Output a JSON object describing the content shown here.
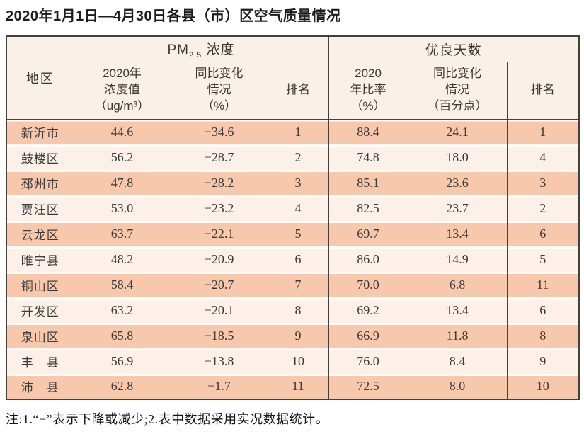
{
  "title": "2020年1月1日—4月30日各县（市）区空气质量情况",
  "table": {
    "region_header": "地区",
    "pm_group": {
      "prefix": "PM",
      "sub": "2.5",
      "suffix": " 浓度"
    },
    "good_days_group": "优良天数",
    "sub_headers": {
      "pm_value": "2020年\n浓度值\n（ug/m³）",
      "pm_change": "同比变化\n情况\n（%）",
      "pm_rank": "排名",
      "ratio": "2020\n年比率\n（%）",
      "ratio_change": "同比变化\n情况\n（百分点）",
      "ratio_rank": "排名"
    },
    "rows": [
      {
        "region": "新沂市",
        "pm_value": "44.6",
        "pm_change": "−34.6",
        "pm_rank": "1",
        "ratio": "88.4",
        "ratio_change": "24.1",
        "ratio_rank": "1"
      },
      {
        "region": "鼓楼区",
        "pm_value": "56.2",
        "pm_change": "−28.7",
        "pm_rank": "2",
        "ratio": "74.8",
        "ratio_change": "18.0",
        "ratio_rank": "4"
      },
      {
        "region": "邳州市",
        "pm_value": "47.8",
        "pm_change": "−28.2",
        "pm_rank": "3",
        "ratio": "85.1",
        "ratio_change": "23.6",
        "ratio_rank": "3"
      },
      {
        "region": "贾汪区",
        "pm_value": "53.0",
        "pm_change": "−23.2",
        "pm_rank": "4",
        "ratio": "82.5",
        "ratio_change": "23.7",
        "ratio_rank": "2"
      },
      {
        "region": "云龙区",
        "pm_value": "63.7",
        "pm_change": "−22.1",
        "pm_rank": "5",
        "ratio": "69.7",
        "ratio_change": "13.4",
        "ratio_rank": "6"
      },
      {
        "region": "睢宁县",
        "pm_value": "48.2",
        "pm_change": "−20.9",
        "pm_rank": "6",
        "ratio": "86.0",
        "ratio_change": "14.9",
        "ratio_rank": "5"
      },
      {
        "region": "铜山区",
        "pm_value": "58.4",
        "pm_change": "−20.7",
        "pm_rank": "7",
        "ratio": "70.0",
        "ratio_change": "6.8",
        "ratio_rank": "11"
      },
      {
        "region": "开发区",
        "pm_value": "63.2",
        "pm_change": "−20.1",
        "pm_rank": "8",
        "ratio": "69.2",
        "ratio_change": "13.4",
        "ratio_rank": "6"
      },
      {
        "region": "泉山区",
        "pm_value": "65.8",
        "pm_change": "−18.5",
        "pm_rank": "9",
        "ratio": "66.9",
        "ratio_change": "11.8",
        "ratio_rank": "8"
      },
      {
        "region": "丰　县",
        "pm_value": "56.9",
        "pm_change": "−13.8",
        "pm_rank": "10",
        "ratio": "76.0",
        "ratio_change": "8.4",
        "ratio_rank": "9"
      },
      {
        "region": "沛　县",
        "pm_value": "62.8",
        "pm_change": "−1.7",
        "pm_rank": "11",
        "ratio": "72.5",
        "ratio_change": "8.0",
        "ratio_rank": "10"
      }
    ]
  },
  "footnote": "注:1.“−”表示下降或减少;2.表中数据采用实况数据统计。",
  "colors": {
    "row_odd": "#f8c8ad",
    "row_even": "#fcf0e9",
    "header_bg": "#f9f1e7",
    "border": "#454039",
    "text": "#3b3b3b"
  }
}
